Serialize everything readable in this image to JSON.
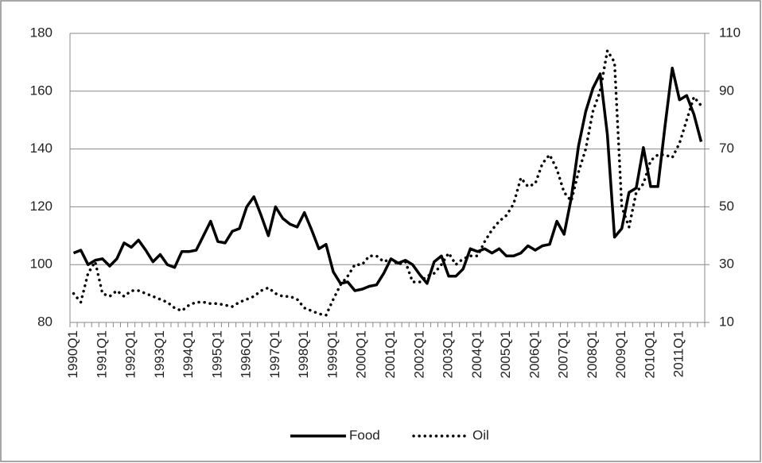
{
  "chart_data": {
    "type": "line",
    "categories": [
      "1990Q1",
      null,
      null,
      null,
      "1991Q1",
      null,
      null,
      null,
      "1992Q1",
      null,
      null,
      null,
      "1993Q1",
      null,
      null,
      null,
      "1994Q1",
      null,
      null,
      null,
      "1995Q1",
      null,
      null,
      null,
      "1996Q1",
      null,
      null,
      null,
      "1997Q1",
      null,
      null,
      null,
      "1998Q1",
      null,
      null,
      null,
      "1999Q1",
      null,
      null,
      null,
      "2000Q1",
      null,
      null,
      null,
      "2001Q1",
      null,
      null,
      null,
      "2002Q1",
      null,
      null,
      null,
      "2003Q1",
      null,
      null,
      null,
      "2004Q1",
      null,
      null,
      null,
      "2005Q1",
      null,
      null,
      null,
      "2006Q1",
      null,
      null,
      null,
      "2007Q1",
      null,
      null,
      null,
      "2008Q1",
      null,
      null,
      null,
      "2009Q1",
      null,
      null,
      null,
      "2010Q1",
      null,
      null,
      null,
      "2011Q1",
      null,
      null,
      null
    ],
    "series": [
      {
        "name": "Food",
        "color": "#000000",
        "axis": "y",
        "dash": "solid",
        "values": [
          104,
          105,
          100,
          101.5,
          102,
          99.5,
          102,
          107.5,
          106,
          108.5,
          105,
          101,
          103.5,
          100,
          99,
          104.5,
          104.5,
          105,
          110,
          115,
          108,
          107.5,
          111.5,
          112.5,
          120,
          123.5,
          117,
          110,
          120,
          116,
          114,
          113,
          118,
          112,
          105.5,
          107,
          97.5,
          93.5,
          94,
          91,
          91.5,
          92.5,
          93,
          97,
          102,
          100.5,
          101.5,
          100,
          96.5,
          93.5,
          101,
          103,
          96,
          96,
          98.5,
          105.5,
          104.5,
          105.5,
          104,
          105.5,
          103,
          103,
          104,
          106.5,
          105,
          106.5,
          107,
          115,
          110.5,
          123,
          141,
          153,
          161,
          166,
          145,
          109.5,
          112.5,
          125,
          126.5,
          140.5,
          127,
          127,
          148,
          168,
          157,
          158.5,
          152,
          142.5
        ]
      },
      {
        "name": "Oil",
        "color": "#000000",
        "axis": "y2",
        "dash": "dotted",
        "values": [
          20,
          17,
          27,
          31,
          20,
          19,
          21,
          19,
          21,
          21,
          20,
          19,
          18,
          17,
          15,
          14,
          16,
          17,
          17,
          16.5,
          16.5,
          16,
          15.5,
          17,
          18,
          19,
          21,
          22,
          20,
          19,
          19,
          18,
          15,
          14,
          13,
          12.5,
          18,
          23,
          26,
          30,
          30,
          33,
          33,
          31,
          32,
          30,
          31,
          24,
          24,
          26,
          27,
          30,
          34,
          30,
          32,
          33,
          33,
          38,
          42,
          45,
          47,
          51,
          60,
          57,
          58,
          65,
          68,
          63,
          55,
          52,
          62,
          70,
          83,
          90,
          104,
          100,
          50,
          43,
          55,
          58,
          66,
          68,
          68,
          67,
          72,
          80,
          88,
          85
        ]
      }
    ],
    "ylim": [
      80,
      180
    ],
    "yticks": [
      80,
      100,
      120,
      140,
      160,
      180
    ],
    "y2lim": [
      10,
      110
    ],
    "y2ticks": [
      10,
      30,
      50,
      70,
      90,
      110
    ],
    "grid": true,
    "legend": "bottom"
  }
}
